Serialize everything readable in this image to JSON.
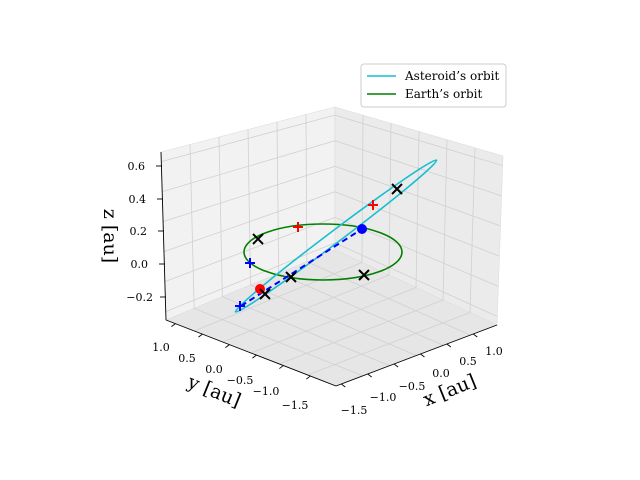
{
  "chart_data": {
    "type": "line",
    "projection": "3d",
    "xlabel": "x [au]",
    "ylabel": "y [au]",
    "zlabel": "z [au]",
    "x_ticks": [
      "−1.5",
      "−1.0",
      "−0.5",
      "0.0",
      "0.5",
      "1.0"
    ],
    "y_ticks": [
      "1.0",
      "0.5",
      "0.0",
      "−0.5",
      "−1.0",
      "−1.5"
    ],
    "z_ticks": [
      "0.6",
      "0.4",
      "0.2",
      "0.0",
      "−0.2"
    ],
    "grid": true,
    "legend_position": "top-right",
    "series": [
      {
        "name": "Asteroid’s orbit",
        "color": "#17becf",
        "kind": "ellipse"
      },
      {
        "name": "Earth’s orbit",
        "color": "#008000",
        "kind": "circle"
      }
    ],
    "markers": {
      "sun_like_point_color": "#0000ff",
      "red_point_color": "#ff0000",
      "x_marker_color": "#000000",
      "plus_blue_color": "#0000ff",
      "plus_red_color": "#ff0000"
    }
  }
}
